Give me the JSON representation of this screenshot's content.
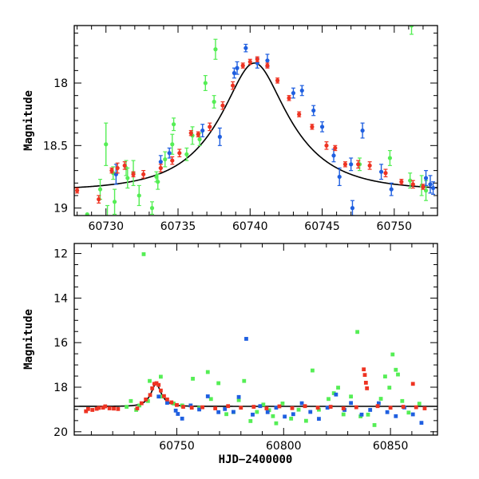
{
  "colors": {
    "green": "#55ee55",
    "blue": "#1f5fe0",
    "red": "#ee3322",
    "model": "#000000"
  },
  "chart_data": [
    {
      "type": "scatter",
      "title": "",
      "xlabel": "",
      "ylabel": "Magnitude",
      "xlim": [
        60727.8,
        60753
      ],
      "ylim": [
        19.06,
        17.54
      ],
      "y_inverted": true,
      "x_ticks": [
        60730,
        60735,
        60740,
        60745,
        60750
      ],
      "y_ticks": [
        18,
        18.5,
        19
      ],
      "x_tick_labels": [
        "60730",
        "60735",
        "60740",
        "60745",
        "60750"
      ],
      "y_tick_labels": [
        "18",
        "18.5",
        "19"
      ],
      "model_curve": {
        "peak_time": 60740.3,
        "peak_mag": 17.84,
        "base_mag": 18.86,
        "tE": 4.7,
        "u0": 0.39
      },
      "series": [
        {
          "color": "green",
          "points": [
            [
              60728.7,
              19.05,
              0.0
            ],
            [
              60729.6,
              18.85,
              0.08
            ],
            [
              60730.0,
              18.49,
              0.17
            ],
            [
              60730.1,
              19.08,
              0.1
            ],
            [
              60730.5,
              18.72,
              0.05
            ],
            [
              60730.6,
              18.95,
              0.1
            ],
            [
              60731.4,
              18.68,
              0.06
            ],
            [
              60731.5,
              18.76,
              0.08
            ],
            [
              60731.9,
              18.72,
              0.1
            ],
            [
              60732.3,
              18.9,
              0.08
            ],
            [
              60733.2,
              19.0,
              0.05
            ],
            [
              60733.5,
              18.75,
              0.04
            ],
            [
              60733.6,
              18.79,
              0.06
            ],
            [
              60734.1,
              18.61,
              0.06
            ],
            [
              60734.6,
              18.49,
              0.08
            ],
            [
              60734.7,
              18.33,
              0.05
            ],
            [
              60735.6,
              18.57,
              0.05
            ],
            [
              60736.0,
              18.42,
              0.07
            ],
            [
              60736.5,
              18.45,
              0.05
            ],
            [
              60736.9,
              18.0,
              0.06
            ],
            [
              60737.5,
              18.15,
              0.05
            ],
            [
              60737.6,
              17.73,
              0.08
            ],
            [
              60747.6,
              18.65,
              0.05
            ],
            [
              60749.7,
              18.6,
              0.06
            ],
            [
              60751.1,
              18.78,
              0.06
            ],
            [
              60751.2,
              17.54,
              0.07
            ],
            [
              60751.9,
              18.82,
              0.08
            ],
            [
              60752.2,
              18.86,
              0.08
            ]
          ]
        },
        {
          "color": "blue",
          "points": [
            [
              60730.7,
              18.73,
              0.08
            ],
            [
              60733.8,
              18.63,
              0.05
            ],
            [
              60734.4,
              18.56,
              0.04
            ],
            [
              60736.7,
              18.38,
              0.05
            ],
            [
              60737.9,
              18.43,
              0.07
            ],
            [
              60738.9,
              17.92,
              0.04
            ],
            [
              60739.1,
              17.88,
              0.05
            ],
            [
              60739.7,
              17.72,
              0.03
            ],
            [
              60740.5,
              17.84,
              0.04
            ],
            [
              60741.2,
              17.82,
              0.05
            ],
            [
              60743.0,
              18.08,
              0.04
            ],
            [
              60743.6,
              18.06,
              0.04
            ],
            [
              60744.4,
              18.22,
              0.04
            ],
            [
              60745.0,
              18.35,
              0.04
            ],
            [
              60745.8,
              18.58,
              0.05
            ],
            [
              60746.2,
              18.75,
              0.07
            ],
            [
              60747.0,
              18.65,
              0.05
            ],
            [
              60747.1,
              19.0,
              0.06
            ],
            [
              60747.8,
              18.38,
              0.06
            ],
            [
              60749.1,
              18.71,
              0.06
            ],
            [
              60749.8,
              18.85,
              0.05
            ],
            [
              60752.2,
              18.76,
              0.06
            ],
            [
              60752.5,
              18.81,
              0.07
            ],
            [
              60752.7,
              18.84,
              0.05
            ]
          ]
        },
        {
          "color": "red",
          "points": [
            [
              60728.0,
              18.86,
              0.02
            ],
            [
              60729.5,
              18.93,
              0.03
            ],
            [
              60730.4,
              18.7,
              0.02
            ],
            [
              60730.8,
              18.68,
              0.04
            ],
            [
              60731.3,
              18.66,
              0.03
            ],
            [
              60731.9,
              18.73,
              0.02
            ],
            [
              60732.6,
              18.73,
              0.03
            ],
            [
              60733.8,
              18.68,
              0.03
            ],
            [
              60734.6,
              18.62,
              0.03
            ],
            [
              60735.1,
              18.56,
              0.03
            ],
            [
              60735.9,
              18.4,
              0.02
            ],
            [
              60736.4,
              18.41,
              0.02
            ],
            [
              60737.2,
              18.35,
              0.03
            ],
            [
              60738.1,
              18.18,
              0.03
            ],
            [
              60738.8,
              18.02,
              0.03
            ],
            [
              60739.5,
              17.86,
              0.02
            ],
            [
              60740.0,
              17.83,
              0.02
            ],
            [
              60740.5,
              17.81,
              0.02
            ],
            [
              60741.2,
              17.86,
              0.02
            ],
            [
              60741.9,
              17.98,
              0.02
            ],
            [
              60742.7,
              18.12,
              0.02
            ],
            [
              60743.4,
              18.25,
              0.02
            ],
            [
              60744.3,
              18.35,
              0.02
            ],
            [
              60745.3,
              18.5,
              0.03
            ],
            [
              60745.9,
              18.52,
              0.02
            ],
            [
              60746.6,
              18.65,
              0.02
            ],
            [
              60747.5,
              18.65,
              0.03
            ],
            [
              60748.3,
              18.66,
              0.03
            ],
            [
              60749.4,
              18.72,
              0.03
            ],
            [
              60750.5,
              18.79,
              0.02
            ],
            [
              60751.3,
              18.81,
              0.03
            ],
            [
              60752.0,
              18.83,
              0.02
            ]
          ]
        }
      ]
    },
    {
      "type": "scatter",
      "title": "",
      "xlabel": "HJD−2400000",
      "ylabel": "Magnitude",
      "xlim": [
        60702,
        60872
      ],
      "ylim": [
        20.15,
        11.55
      ],
      "y_inverted": true,
      "x_ticks": [
        60750,
        60800,
        60850
      ],
      "y_ticks": [
        12,
        14,
        16,
        18,
        20
      ],
      "x_tick_labels": [
        "60750",
        "60800",
        "60850"
      ],
      "y_tick_labels": [
        "12",
        "14",
        "16",
        "18",
        "20"
      ],
      "model_curve": {
        "peak_time": 60740.3,
        "peak_mag": 17.84,
        "base_mag": 18.86,
        "tE": 4.7,
        "u0": 0.39
      },
      "series": [
        {
          "color": "green",
          "points": [
            [
              60726.5,
              18.88
            ],
            [
              60728.5,
              18.62
            ],
            [
              60731.0,
              19.02
            ],
            [
              60732.5,
              18.82
            ],
            [
              60734.5,
              12.03
            ],
            [
              60736.5,
              18.62
            ],
            [
              60737.3,
              17.72
            ],
            [
              60742.5,
              17.53
            ],
            [
              60743.2,
              18.42
            ],
            [
              60748.5,
              18.73
            ],
            [
              60752.5,
              18.82
            ],
            [
              60757.5,
              17.62
            ],
            [
              60760.5,
              18.93
            ],
            [
              60764.5,
              17.32
            ],
            [
              60766.0,
              18.53
            ],
            [
              60769.5,
              17.82
            ],
            [
              60773.2,
              19.21
            ],
            [
              60776.5,
              19.12
            ],
            [
              60779.0,
              18.58
            ],
            [
              60781.5,
              17.72
            ],
            [
              60784.5,
              19.52
            ],
            [
              60787.5,
              19.11
            ],
            [
              60790.5,
              18.78
            ],
            [
              60793.2,
              19.03
            ],
            [
              60795.0,
              19.3
            ],
            [
              60796.5,
              19.62
            ],
            [
              60799.5,
              18.73
            ],
            [
              60803.5,
              19.41
            ],
            [
              60807.0,
              19.01
            ],
            [
              60810.5,
              19.51
            ],
            [
              60813.5,
              17.25
            ],
            [
              60816.5,
              19.01
            ],
            [
              60821.0,
              18.53
            ],
            [
              60823.5,
              18.27
            ],
            [
              60825.5,
              18.02
            ],
            [
              60828.0,
              19.22
            ],
            [
              60831.5,
              18.42
            ],
            [
              60834.5,
              15.52
            ],
            [
              60836.0,
              19.31
            ],
            [
              60839.5,
              19.23
            ],
            [
              60842.5,
              19.7
            ],
            [
              60845.5,
              18.52
            ],
            [
              60847.5,
              17.52
            ],
            [
              60849.5,
              18.02
            ],
            [
              60851.0,
              16.53
            ],
            [
              60852.5,
              17.22
            ],
            [
              60853.5,
              17.43
            ],
            [
              60855.5,
              18.62
            ],
            [
              60858.5,
              19.14
            ],
            [
              60863.5,
              18.74
            ]
          ]
        },
        {
          "color": "blue",
          "points": [
            [
              60741.5,
              18.42
            ],
            [
              60745.5,
              18.7
            ],
            [
              60749.5,
              19.05
            ],
            [
              60750.5,
              19.2
            ],
            [
              60752.5,
              19.41
            ],
            [
              60756.5,
              18.82
            ],
            [
              60760.5,
              19.0
            ],
            [
              60764.5,
              18.41
            ],
            [
              60769.5,
              19.12
            ],
            [
              60772.5,
              18.98
            ],
            [
              60776.5,
              19.11
            ],
            [
              60779.0,
              18.44
            ],
            [
              60782.5,
              15.83
            ],
            [
              60785.5,
              19.23
            ],
            [
              60789.0,
              18.85
            ],
            [
              60792.5,
              19.12
            ],
            [
              60796.5,
              18.92
            ],
            [
              60800.5,
              19.32
            ],
            [
              60804.5,
              19.21
            ],
            [
              60808.5,
              18.72
            ],
            [
              60812.5,
              19.11
            ],
            [
              60816.5,
              19.42
            ],
            [
              60820.5,
              18.92
            ],
            [
              60824.5,
              18.33
            ],
            [
              60828.5,
              19.02
            ],
            [
              60831.5,
              18.71
            ],
            [
              60836.5,
              19.23
            ],
            [
              60840.5,
              19.02
            ],
            [
              60844.5,
              18.72
            ],
            [
              60848.5,
              19.12
            ],
            [
              60852.5,
              19.3
            ],
            [
              60856.5,
              18.91
            ],
            [
              60860.5,
              19.22
            ],
            [
              60864.5,
              19.6
            ]
          ]
        },
        {
          "color": "red",
          "points": [
            [
              60707.5,
              19.08
            ],
            [
              60708.5,
              18.98
            ],
            [
              60710.5,
              19.02
            ],
            [
              60712.5,
              18.97
            ],
            [
              60713.5,
              18.93
            ],
            [
              60715.5,
              18.92
            ],
            [
              60716.5,
              18.86
            ],
            [
              60718.5,
              18.95
            ],
            [
              60720.5,
              18.96
            ],
            [
              60722.5,
              18.98
            ],
            [
              60731.5,
              18.95
            ],
            [
              60733.5,
              18.72
            ],
            [
              60735.5,
              18.55
            ],
            [
              60737.5,
              18.35
            ],
            [
              60738.5,
              18.05
            ],
            [
              60739.5,
              17.85
            ],
            [
              60740.5,
              17.82
            ],
            [
              60741.5,
              17.9
            ],
            [
              60742.5,
              18.15
            ],
            [
              60744.0,
              18.4
            ],
            [
              60745.5,
              18.55
            ],
            [
              60747.5,
              18.68
            ],
            [
              60750.0,
              18.8
            ],
            [
              60753.0,
              18.88
            ],
            [
              60757.0,
              18.92
            ],
            [
              60762.0,
              18.9
            ],
            [
              60768.0,
              18.95
            ],
            [
              60774.0,
              18.85
            ],
            [
              60780.0,
              18.92
            ],
            [
              60786.0,
              18.88
            ],
            [
              60792.0,
              18.95
            ],
            [
              60798.0,
              18.86
            ],
            [
              60804.0,
              18.94
            ],
            [
              60810.0,
              18.85
            ],
            [
              60816.0,
              18.92
            ],
            [
              60822.0,
              18.88
            ],
            [
              60828.0,
              18.95
            ],
            [
              60834.0,
              18.9
            ],
            [
              60837.5,
              17.2
            ],
            [
              60838.0,
              17.45
            ],
            [
              60838.5,
              17.8
            ],
            [
              60839.0,
              18.05
            ],
            [
              60844.0,
              18.85
            ],
            [
              60850.0,
              18.92
            ],
            [
              60856.0,
              18.88
            ],
            [
              60860.5,
              17.85
            ],
            [
              60862.0,
              18.9
            ],
            [
              60866.0,
              18.95
            ]
          ]
        }
      ]
    }
  ]
}
